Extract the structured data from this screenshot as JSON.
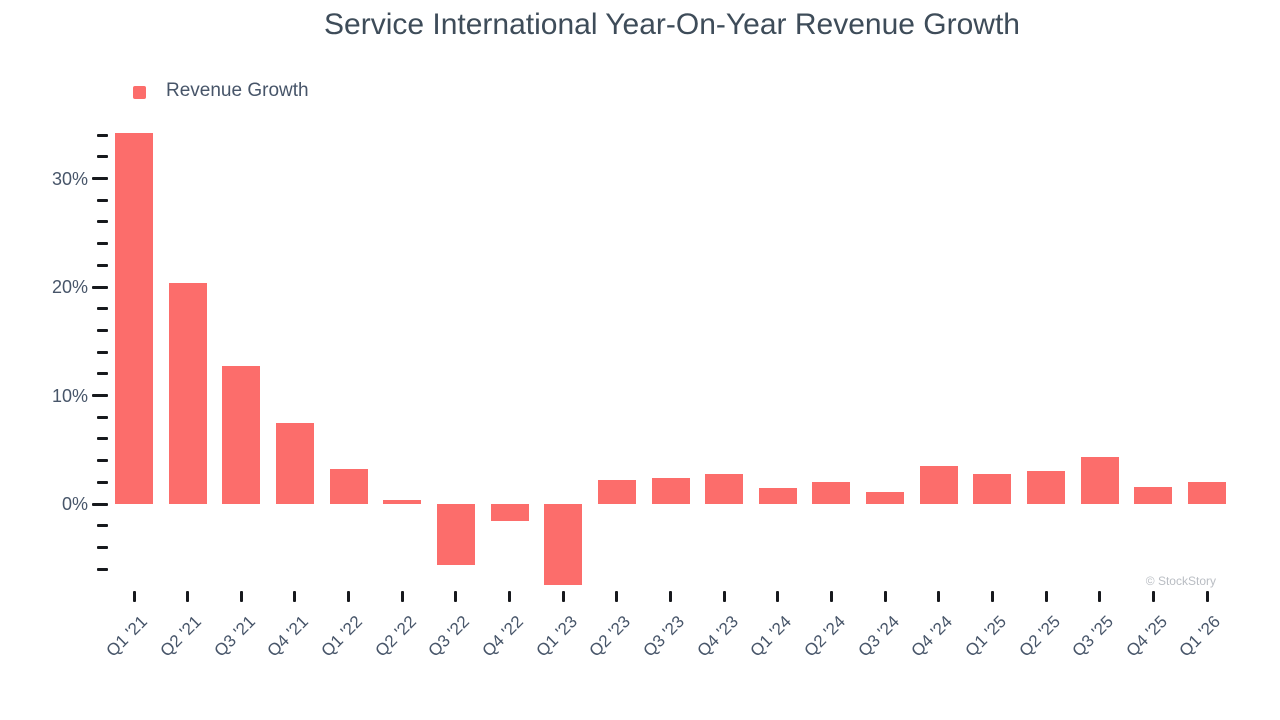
{
  "title": "Service International Year-On-Year Revenue Growth",
  "legend": {
    "label": "Revenue Growth"
  },
  "watermark": "© StockStory",
  "colors": {
    "bar": "#fc6d6b",
    "title": "#3e4c59",
    "text": "#475569",
    "tick": "#17191d",
    "watermark": "#b9bdc3"
  },
  "chart_data": {
    "type": "bar",
    "title": "Service International Year-On-Year Revenue Growth",
    "series_name": "Revenue Growth",
    "unit": "%",
    "categories": [
      "Q1 '21",
      "Q2 '21",
      "Q3 '21",
      "Q4 '21",
      "Q1 '22",
      "Q2 '22",
      "Q3 '22",
      "Q4 '22",
      "Q1 '23",
      "Q2 '23",
      "Q3 '23",
      "Q4 '23",
      "Q1 '24",
      "Q2 '24",
      "Q3 '24",
      "Q4 '24",
      "Q1 '25",
      "Q2 '25",
      "Q3 '25",
      "Q4 '25",
      "Q1 '26"
    ],
    "values": [
      34.2,
      20.4,
      12.7,
      7.5,
      3.2,
      0.4,
      -5.6,
      -1.6,
      -7.5,
      2.2,
      2.4,
      2.8,
      1.5,
      2.0,
      1.1,
      3.5,
      2.8,
      3.0,
      4.3,
      1.6,
      2.0
    ],
    "xlabel": "",
    "ylabel": "",
    "ylim": [
      -8,
      35
    ],
    "y_ticks": {
      "min": -6,
      "max": 34,
      "minor_step": 2,
      "labeled_step": 10,
      "label_format": "{v}%"
    },
    "grid": false,
    "legend_position": "top-left",
    "x_label_rotation_deg": -45
  }
}
